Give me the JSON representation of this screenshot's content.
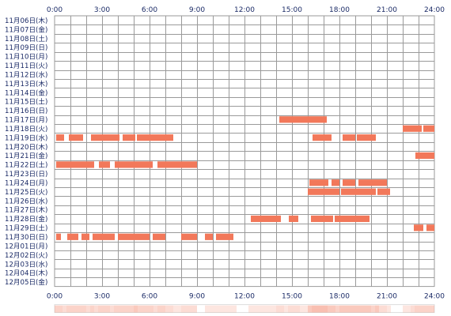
{
  "chart_data": {
    "type": "heatmap",
    "title": "",
    "xlabel": "",
    "ylabel": "",
    "x_range_hours": [
      0,
      24
    ],
    "grid": true,
    "x_ticks": [
      "0:00",
      "3:00",
      "6:00",
      "9:00",
      "12:00",
      "15:00",
      "18:00",
      "21:00",
      "24:00"
    ],
    "days": [
      "11月06日(木)",
      "11月07日(金)",
      "11月08日(土)",
      "11月09日(日)",
      "11月10日(月)",
      "11月11日(火)",
      "11月12日(水)",
      "11月13日(木)",
      "11月14日(金)",
      "11月15日(土)",
      "11月16日(日)",
      "11月17日(月)",
      "11月18日(火)",
      "11月19日(水)",
      "11月20日(木)",
      "11月21日(金)",
      "11月22日(土)",
      "11月23日(日)",
      "11月24日(月)",
      "11月25日(火)",
      "11月26日(水)",
      "11月27日(木)",
      "11月28日(金)",
      "11月29日(土)",
      "11月30日(日)",
      "12月01日(月)",
      "12月02日(火)",
      "12月03日(水)",
      "12月04日(木)",
      "12月05日(金)"
    ],
    "activity": [
      [],
      [],
      [],
      [],
      [],
      [],
      [],
      [],
      [],
      [],
      [],
      [
        [
          14.2,
          17.2
        ]
      ],
      [
        [
          22.0,
          23.2
        ],
        [
          23.3,
          24.0
        ]
      ],
      [
        [
          0.1,
          0.6
        ],
        [
          0.9,
          1.8
        ],
        [
          2.3,
          4.1
        ],
        [
          4.3,
          5.1
        ],
        [
          5.2,
          7.5
        ],
        [
          16.3,
          17.5
        ],
        [
          18.2,
          19.0
        ],
        [
          19.1,
          20.3
        ]
      ],
      [],
      [
        [
          22.8,
          24.0
        ]
      ],
      [
        [
          0.1,
          2.5
        ],
        [
          2.8,
          3.5
        ],
        [
          3.8,
          6.2
        ],
        [
          6.5,
          9.0
        ]
      ],
      [],
      [
        [
          16.1,
          17.3
        ],
        [
          17.5,
          18.0
        ],
        [
          18.2,
          19.0
        ],
        [
          19.2,
          21.0
        ]
      ],
      [
        [
          16.0,
          18.0
        ],
        [
          18.1,
          20.3
        ],
        [
          20.4,
          21.2
        ]
      ],
      [],
      [],
      [
        [
          12.4,
          14.3
        ],
        [
          14.8,
          15.4
        ],
        [
          16.2,
          17.6
        ],
        [
          17.7,
          19.9
        ]
      ],
      [
        [
          22.7,
          23.3
        ],
        [
          23.5,
          24.0
        ]
      ],
      [
        [
          0.1,
          0.4
        ],
        [
          0.8,
          1.5
        ],
        [
          1.7,
          2.2
        ],
        [
          2.4,
          3.8
        ],
        [
          4.0,
          6.0
        ],
        [
          6.2,
          7.0
        ],
        [
          8.0,
          9.0
        ],
        [
          9.5,
          10.0
        ],
        [
          10.2,
          11.3
        ]
      ],
      [],
      [],
      [],
      [],
      []
    ],
    "colors": {
      "bar": "#f2785a",
      "grid": "#9a9a9a",
      "label": "#1a2a66",
      "summary_strip": "#ffe4d8"
    }
  }
}
